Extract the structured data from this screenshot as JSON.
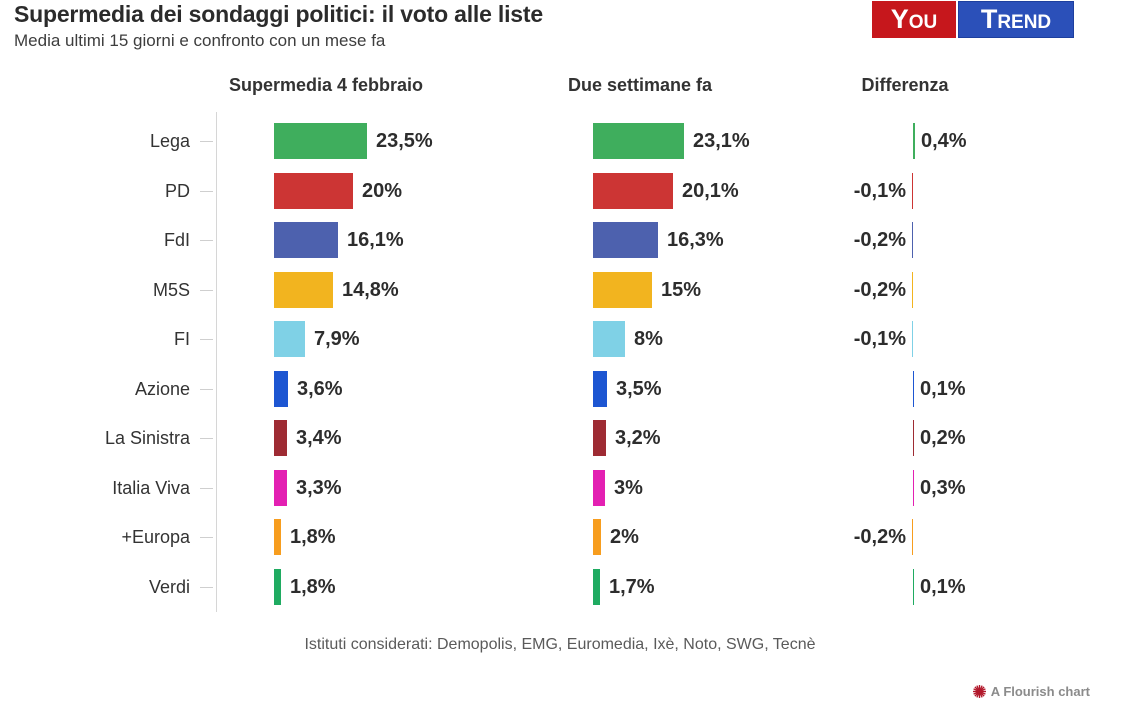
{
  "header": {
    "title": "Supermedia dei sondaggi politici: il voto alle liste",
    "subtitle": "Media ultimi 15 giorni e confronto con un mese fa"
  },
  "logo": {
    "you": "You",
    "trend": "Trend",
    "you_bg": "#c6171c",
    "trend_bg": "#2b50b9"
  },
  "columns": [
    "Supermedia 4 febbraio",
    "Due settimane fa",
    "Differenza"
  ],
  "chart_data": {
    "type": "bar",
    "title": "Supermedia dei sondaggi politici: il voto alle liste",
    "subtitle": "Media ultimi 15 giorni e confronto con un mese fa",
    "categories": [
      "Lega",
      "PD",
      "FdI",
      "M5S",
      "FI",
      "Azione",
      "La Sinistra",
      "Italia Viva",
      "+Europa",
      "Verdi"
    ],
    "series": [
      {
        "name": "Supermedia 4 febbraio",
        "values": [
          23.5,
          20,
          16.1,
          14.8,
          7.9,
          3.6,
          3.4,
          3.3,
          1.8,
          1.8
        ],
        "labels": [
          "23,5%",
          "20%",
          "16,1%",
          "14,8%",
          "7,9%",
          "3,6%",
          "3,4%",
          "3,3%",
          "1,8%",
          "1,8%"
        ]
      },
      {
        "name": "Due settimane fa",
        "values": [
          23.1,
          20.1,
          16.3,
          15,
          8,
          3.5,
          3.2,
          3,
          2,
          1.7
        ],
        "labels": [
          "23,1%",
          "20,1%",
          "16,3%",
          "15%",
          "8%",
          "3,5%",
          "3,2%",
          "3%",
          "2%",
          "1,7%"
        ]
      },
      {
        "name": "Differenza",
        "values": [
          0.4,
          -0.1,
          -0.2,
          -0.2,
          -0.1,
          0.1,
          0.2,
          0.3,
          -0.2,
          0.1
        ],
        "labels": [
          "0,4%",
          "-0,1%",
          "-0,2%",
          "-0,2%",
          "-0,1%",
          "0,1%",
          "0,2%",
          "0,3%",
          "-0,2%",
          "0,1%"
        ]
      }
    ],
    "bar_colors": [
      "#3fae5d",
      "#cc3534",
      "#4d61ae",
      "#f2b41f",
      "#7fd1e6",
      "#1d56d2",
      "#9e2b33",
      "#e320b2",
      "#f79d1e",
      "#1fab61"
    ],
    "xlim": [
      0,
      25
    ],
    "grid": false,
    "legend_position": "none",
    "orientation": "horizontal"
  },
  "footer": {
    "note": "Istituti considerati: Demopolis, EMG, Euromedia, Ixè, Noto, SWG, Tecnè",
    "flourish_label": "A Flourish chart",
    "flourish_icon_color": "#b2182b"
  }
}
